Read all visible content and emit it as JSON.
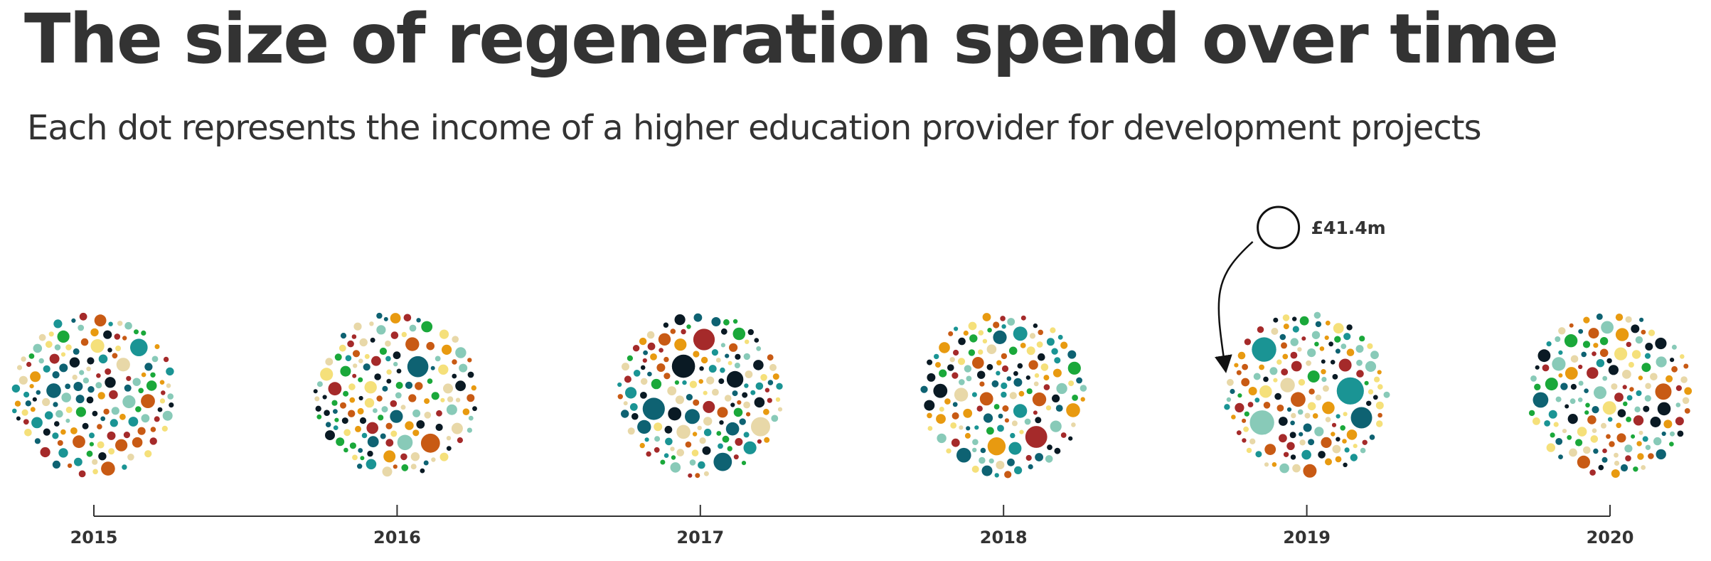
{
  "title": "The size of regeneration spend over time",
  "subtitle": "Each dot represents the income of a higher education provider for development projects",
  "chart_data": {
    "type": "scatter",
    "title": "The size of regeneration spend over time",
    "subtitle": "Each dot represents the income of a higher education provider for development projects",
    "x": [
      "2015",
      "2016",
      "2017",
      "2018",
      "2019",
      "2020"
    ],
    "xlabel": "",
    "ylabel": "",
    "grid": false,
    "palette": [
      "#a52a2a",
      "#f5e07a",
      "#e8d8a8",
      "#0e6272",
      "#0a1a24",
      "#e89a10",
      "#c85a14",
      "#1aa83a",
      "#88cab8",
      "#1a9494"
    ],
    "legend_size": {
      "value": "£41.4m",
      "year": "2019"
    },
    "series_seeds": [
      11,
      23,
      37,
      51,
      67,
      83
    ]
  }
}
